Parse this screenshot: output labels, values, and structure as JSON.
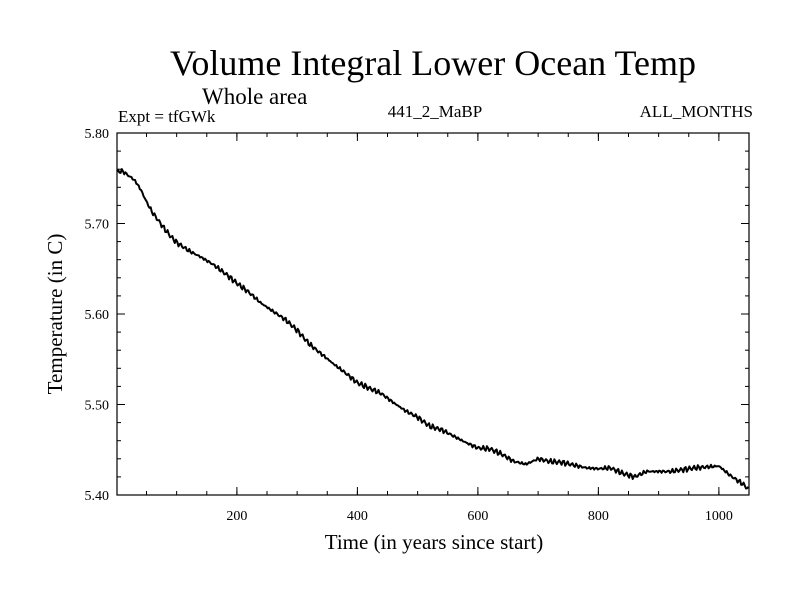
{
  "chart_data": {
    "type": "line",
    "title": "Volume Integral Lower Ocean Temp",
    "subtitle": "Whole area",
    "left_label": "Expt = tfGWk",
    "center_label": "441_2_MaBP",
    "right_label": "ALL_MONTHS",
    "xlabel": "Time (in years since start)",
    "ylabel": "Temperature (in C)",
    "xlim": [
      1,
      1050
    ],
    "ylim": [
      5.4,
      5.8
    ],
    "xticks": [
      200,
      400,
      600,
      800,
      1000
    ],
    "xtick_labels": [
      "200",
      "400",
      "600",
      "800",
      "1000"
    ],
    "yticks": [
      5.4,
      5.5,
      5.6,
      5.7,
      5.8
    ],
    "ytick_labels": [
      "5.40",
      "5.50",
      "5.60",
      "5.70",
      "5.80"
    ],
    "grid": false,
    "series": [
      {
        "name": "Temperature",
        "x": [
          1,
          10,
          20,
          30,
          40,
          50,
          60,
          70,
          80,
          90,
          100,
          120,
          140,
          160,
          180,
          200,
          220,
          240,
          260,
          280,
          300,
          320,
          340,
          360,
          380,
          400,
          420,
          440,
          460,
          480,
          500,
          520,
          540,
          560,
          580,
          600,
          620,
          640,
          660,
          680,
          700,
          720,
          740,
          760,
          780,
          800,
          820,
          840,
          860,
          880,
          900,
          920,
          940,
          960,
          980,
          1000,
          1020,
          1040,
          1050
        ],
        "values": [
          5.757,
          5.758,
          5.753,
          5.748,
          5.738,
          5.724,
          5.712,
          5.703,
          5.694,
          5.686,
          5.679,
          5.67,
          5.663,
          5.655,
          5.645,
          5.634,
          5.624,
          5.612,
          5.603,
          5.594,
          5.582,
          5.567,
          5.556,
          5.545,
          5.535,
          5.524,
          5.518,
          5.512,
          5.502,
          5.493,
          5.486,
          5.476,
          5.472,
          5.465,
          5.458,
          5.452,
          5.451,
          5.445,
          5.437,
          5.434,
          5.44,
          5.437,
          5.436,
          5.433,
          5.43,
          5.429,
          5.43,
          5.424,
          5.42,
          5.426,
          5.426,
          5.426,
          5.428,
          5.43,
          5.431,
          5.432,
          5.421,
          5.412,
          5.406
        ]
      }
    ]
  }
}
